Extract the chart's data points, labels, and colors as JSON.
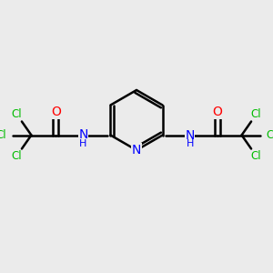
{
  "bg_color": "#ebebeb",
  "bond_color": "#000000",
  "n_color": "#0000ff",
  "o_color": "#ff0000",
  "cl_color": "#00bb00",
  "figsize": [
    3.0,
    3.0
  ],
  "dpi": 100,
  "xlim": [
    0,
    10
  ],
  "ylim": [
    0,
    10
  ]
}
